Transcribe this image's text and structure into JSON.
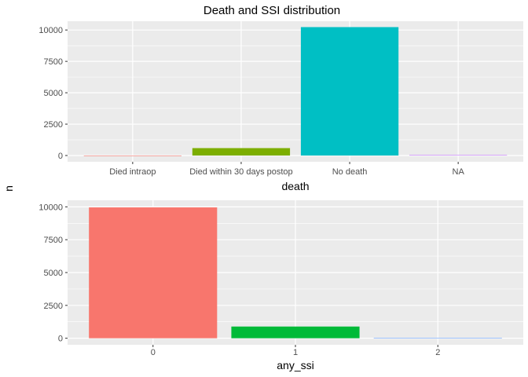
{
  "figure": {
    "title": "Death and SSI distribution",
    "shared_ylabel": "n"
  },
  "chart_data": [
    {
      "type": "bar",
      "xlabel": "death",
      "ylabel": "n",
      "categories": [
        "Died intraop",
        "Died within 30 days postop",
        "No death",
        "NA"
      ],
      "values": [
        2,
        590,
        10230,
        40
      ],
      "colors": [
        "#F8766D",
        "#7CAE00",
        "#00BFC4",
        "#C77CFF"
      ],
      "ylim": [
        -500,
        10700
      ],
      "yticks": [
        0,
        2500,
        5000,
        7500,
        10000
      ],
      "ytick_labels": [
        "0",
        "2500",
        "5000",
        "7500",
        "10000"
      ],
      "grid": true,
      "legend": "none"
    },
    {
      "type": "bar",
      "xlabel": "any_ssi",
      "ylabel": "n",
      "categories": [
        "0",
        "1",
        "2"
      ],
      "values": [
        9960,
        890,
        20
      ],
      "colors": [
        "#F8766D",
        "#00BA38",
        "#619CFF"
      ],
      "ylim": [
        -500,
        10500
      ],
      "yticks": [
        0,
        2500,
        5000,
        7500,
        10000
      ],
      "ytick_labels": [
        "0",
        "2500",
        "5000",
        "7500",
        "10000"
      ],
      "grid": true,
      "legend": "none"
    }
  ]
}
